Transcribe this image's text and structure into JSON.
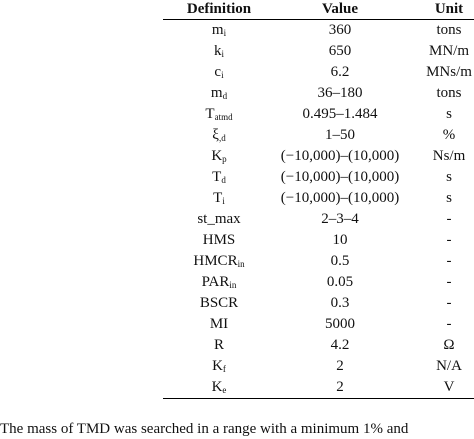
{
  "table": {
    "headers": [
      "Definition",
      "Value",
      "Unit"
    ],
    "rows": [
      {
        "definition": {
          "main": "m",
          "sub": "i"
        },
        "value": "360",
        "unit": "tons"
      },
      {
        "definition": {
          "main": "k",
          "sub": "i"
        },
        "value": "650",
        "unit": "MN/m"
      },
      {
        "definition": {
          "main": "c",
          "sub": "i"
        },
        "value": "6.2",
        "unit": "MNs/m"
      },
      {
        "definition": {
          "main": "m",
          "sub": "d"
        },
        "value": "36–180",
        "unit": "tons"
      },
      {
        "definition": {
          "main": "T",
          "sub": "atmd"
        },
        "value": "0.495–1.484",
        "unit": "s"
      },
      {
        "definition": {
          "main": "ξ",
          "sub": ",d"
        },
        "value": "1–50",
        "unit": "%"
      },
      {
        "definition": {
          "main": "K",
          "sub": "p"
        },
        "value": "(−10,000)–(10,000)",
        "unit": "Ns/m"
      },
      {
        "definition": {
          "main": "T",
          "sub": "d"
        },
        "value": "(−10,000)–(10,000)",
        "unit": "s"
      },
      {
        "definition": {
          "main": "T",
          "sub": "i"
        },
        "value": "(−10,000)–(10,000)",
        "unit": "s"
      },
      {
        "definition": {
          "main": "st_max"
        },
        "value": "2–3–4",
        "unit": "-"
      },
      {
        "definition": {
          "main": "HMS"
        },
        "value": "10",
        "unit": "-"
      },
      {
        "definition": {
          "main": "HMCR",
          "sub": "in"
        },
        "value": "0.5",
        "unit": "-"
      },
      {
        "definition": {
          "main": "PAR",
          "sub": "in"
        },
        "value": "0.05",
        "unit": "-"
      },
      {
        "definition": {
          "main": "BSCR"
        },
        "value": "0.3",
        "unit": "-"
      },
      {
        "definition": {
          "main": "MI"
        },
        "value": "5000",
        "unit": "-"
      },
      {
        "definition": {
          "main": "R"
        },
        "value": "4.2",
        "unit": "Ω"
      },
      {
        "definition": {
          "main": "K",
          "sub": "f"
        },
        "value": "2",
        "unit": "N/A"
      },
      {
        "definition": {
          "main": "K",
          "sub": "e"
        },
        "value": "2",
        "unit": "V"
      }
    ]
  },
  "footer": {
    "text": "The mass of TMD was searched in a range with a minimum 1% and"
  }
}
